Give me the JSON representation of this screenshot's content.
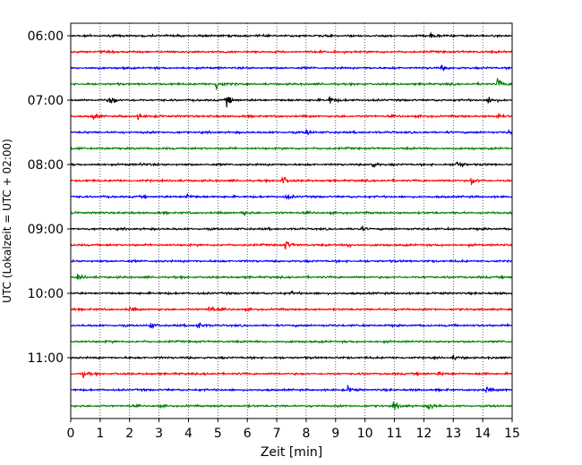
{
  "chart_data": {
    "type": "line",
    "title": "",
    "xlabel": "Zeit  [min]",
    "ylabel": "UTC (Lokalzeit = UTC + 02:00)",
    "xlim": [
      0,
      15
    ],
    "x_ticks": [
      0,
      1,
      2,
      3,
      4,
      5,
      6,
      7,
      8,
      9,
      10,
      11,
      12,
      13,
      14,
      15
    ],
    "y_tick_labels": [
      "06:00",
      "07:00",
      "08:00",
      "09:00",
      "10:00",
      "11:00"
    ],
    "y_tick_trace_index": [
      0,
      4,
      8,
      12,
      16,
      20
    ],
    "grid": "vertical dotted at each minute",
    "legend": "none",
    "trace_colors": [
      "#000000",
      "#ff0000",
      "#0000ff",
      "#008000"
    ],
    "series": [
      {
        "start": "06:00",
        "color": "black",
        "events": [
          [
            12.2,
            0.4
          ]
        ]
      },
      {
        "start": "06:15",
        "color": "red",
        "events": []
      },
      {
        "start": "06:30",
        "color": "blue",
        "events": [
          [
            12.6,
            0.3
          ]
        ]
      },
      {
        "start": "06:45",
        "color": "green",
        "events": [
          [
            4.95,
            0.75
          ],
          [
            14.5,
            0.65
          ]
        ]
      },
      {
        "start": "07:00",
        "color": "black",
        "events": [
          [
            1.35,
            0.7
          ],
          [
            5.3,
            0.65
          ],
          [
            8.8,
            0.5
          ],
          [
            14.2,
            0.55
          ]
        ]
      },
      {
        "start": "07:15",
        "color": "red",
        "events": [
          [
            0.75,
            0.35
          ],
          [
            2.3,
            0.4
          ],
          [
            14.5,
            0.3
          ]
        ]
      },
      {
        "start": "07:30",
        "color": "blue",
        "events": [
          [
            8.0,
            0.4
          ],
          [
            14.9,
            0.3
          ]
        ]
      },
      {
        "start": "07:45",
        "color": "green",
        "events": []
      },
      {
        "start": "08:00",
        "color": "black",
        "events": [
          [
            2.4,
            0.25
          ],
          [
            10.2,
            0.55
          ],
          [
            13.1,
            0.7
          ]
        ]
      },
      {
        "start": "08:15",
        "color": "red",
        "events": [
          [
            7.2,
            0.55
          ],
          [
            13.6,
            0.55
          ]
        ]
      },
      {
        "start": "08:30",
        "color": "blue",
        "events": [
          [
            3.9,
            0.4
          ],
          [
            7.3,
            0.35
          ]
        ]
      },
      {
        "start": "08:45",
        "color": "green",
        "events": [
          [
            5.8,
            0.3
          ]
        ]
      },
      {
        "start": "09:00",
        "color": "black",
        "events": [
          [
            9.8,
            0.3
          ]
        ]
      },
      {
        "start": "09:15",
        "color": "red",
        "events": [
          [
            7.3,
            0.6
          ],
          [
            9.4,
            0.2
          ]
        ]
      },
      {
        "start": "09:30",
        "color": "blue",
        "events": []
      },
      {
        "start": "09:45",
        "color": "green",
        "events": [
          [
            0.25,
            0.3
          ]
        ]
      },
      {
        "start": "10:00",
        "color": "black",
        "events": [
          [
            7.5,
            0.2
          ]
        ]
      },
      {
        "start": "10:15",
        "color": "red",
        "events": [
          [
            2.0,
            0.25
          ],
          [
            4.7,
            0.55
          ]
        ]
      },
      {
        "start": "10:30",
        "color": "blue",
        "events": [
          [
            2.7,
            0.4
          ],
          [
            4.3,
            0.45
          ]
        ]
      },
      {
        "start": "10:45",
        "color": "green",
        "events": []
      },
      {
        "start": "11:00",
        "color": "black",
        "events": [
          [
            13.0,
            0.25
          ]
        ]
      },
      {
        "start": "11:15",
        "color": "red",
        "events": [
          [
            0.4,
            0.35
          ],
          [
            12.5,
            0.25
          ]
        ]
      },
      {
        "start": "11:30",
        "color": "blue",
        "events": [
          [
            9.4,
            0.4
          ],
          [
            14.1,
            0.45
          ]
        ]
      },
      {
        "start": "11:45",
        "color": "green",
        "events": [
          [
            10.95,
            0.6
          ],
          [
            12.15,
            0.55
          ]
        ]
      }
    ]
  }
}
